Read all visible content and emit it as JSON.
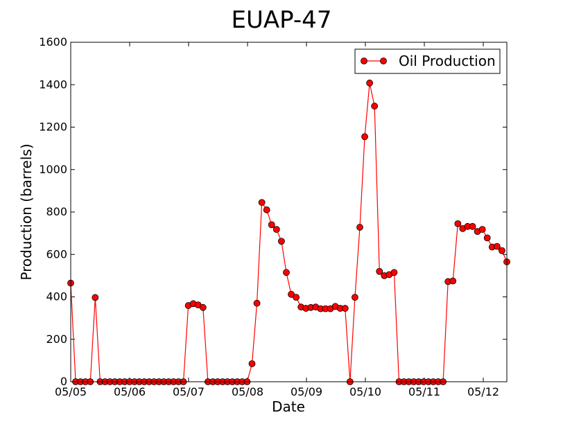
{
  "chart_data": {
    "type": "line",
    "title": "EUAP-47",
    "xlabel": "Date",
    "ylabel": "Production (barrels)",
    "ylim": [
      0,
      1600
    ],
    "yticks": [
      "0",
      "200",
      "400",
      "600",
      "800",
      "1000",
      "1200",
      "1400",
      "1600"
    ],
    "xticks": [
      "05/05",
      "05/06",
      "05/07",
      "05/08",
      "05/09",
      "05/10",
      "05/11",
      "05/12"
    ],
    "legend_position": "top-right",
    "grid": false,
    "colors": {
      "series": "#ff0000",
      "marker_edge": "#000000",
      "line": "#ff0000"
    },
    "series": [
      {
        "name": "Oil Production",
        "values": [
          465,
          0,
          0,
          0,
          0,
          397,
          0,
          0,
          0,
          0,
          0,
          0,
          0,
          0,
          0,
          0,
          0,
          0,
          0,
          0,
          0,
          0,
          0,
          0,
          359,
          368,
          362,
          350,
          0,
          0,
          0,
          0,
          0,
          0,
          0,
          0,
          0,
          85,
          370,
          845,
          810,
          740,
          718,
          662,
          515,
          412,
          398,
          352,
          346,
          350,
          352,
          344,
          344,
          344,
          355,
          346,
          346,
          0,
          398,
          728,
          1155,
          1408,
          1299,
          520,
          500,
          505,
          515,
          0,
          0,
          0,
          0,
          0,
          0,
          0,
          0,
          0,
          0,
          472,
          475,
          745,
          722,
          732,
          732,
          708,
          718,
          678,
          635,
          638,
          618,
          565
        ]
      }
    ]
  }
}
